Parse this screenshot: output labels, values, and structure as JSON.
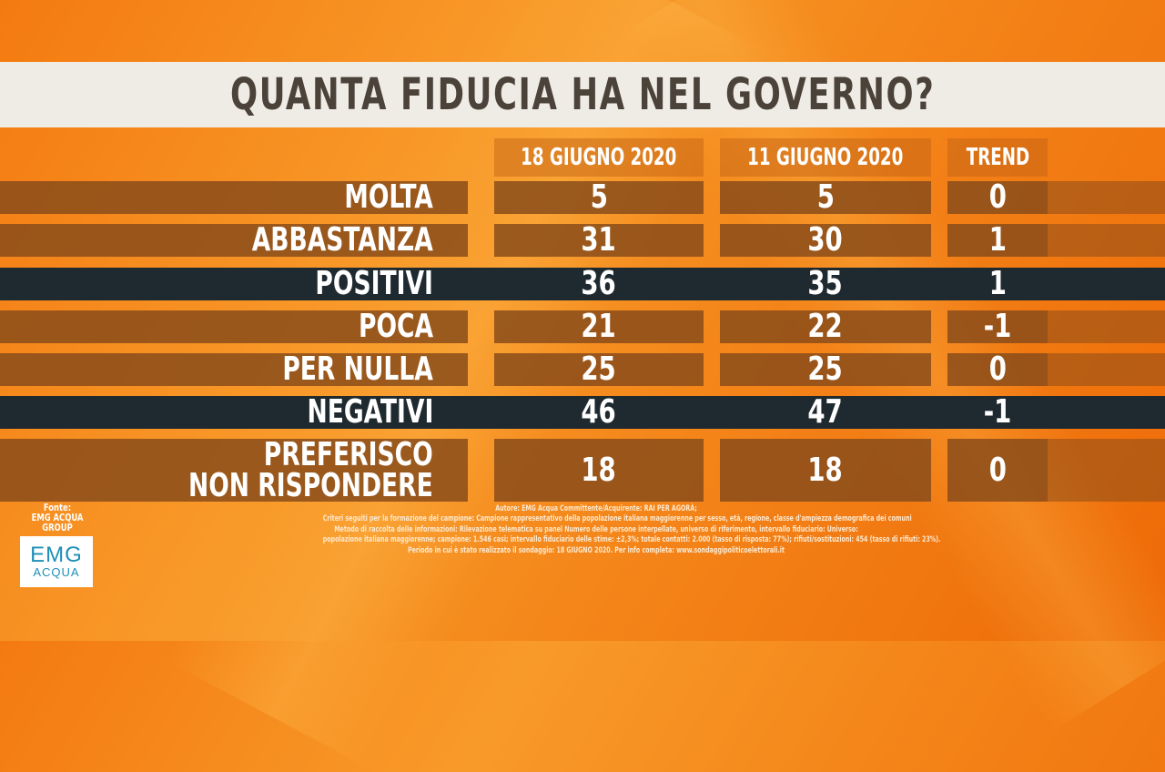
{
  "title": "QUANTA FIDUCIA HA NEL GOVERNO?",
  "colors": {
    "normal_row": "#8a4c1a",
    "highlight_row": "#1f2a30",
    "title_bar": "#efece6",
    "title_text": "#4b423a"
  },
  "chart_data": {
    "type": "table",
    "title": "QUANTA FIDUCIA HA NEL GOVERNO?",
    "columns": [
      "18 GIUGNO 2020",
      "11 GIUGNO 2020",
      "TREND"
    ],
    "rows": [
      {
        "label": [
          "MOLTA"
        ],
        "values": [
          "5",
          "5",
          "0"
        ],
        "highlight": false
      },
      {
        "label": [
          "ABBASTANZA"
        ],
        "values": [
          "31",
          "30",
          "1"
        ],
        "highlight": false
      },
      {
        "label": [
          "POSITIVI"
        ],
        "values": [
          "36",
          "35",
          "1"
        ],
        "highlight": true
      },
      {
        "label": [
          "POCA"
        ],
        "values": [
          "21",
          "22",
          "-1"
        ],
        "highlight": false
      },
      {
        "label": [
          "PER NULLA"
        ],
        "values": [
          "25",
          "25",
          "0"
        ],
        "highlight": false
      },
      {
        "label": [
          "NEGATIVI"
        ],
        "values": [
          "46",
          "47",
          "-1"
        ],
        "highlight": true
      },
      {
        "label": [
          "PREFERISCO",
          "NON RISPONDERE"
        ],
        "values": [
          "18",
          "18",
          "0"
        ],
        "highlight": false
      }
    ]
  },
  "source": {
    "fonte_label": "Fonte:",
    "group": "EMG ACQUA GROUP",
    "logo_main": "EMG",
    "logo_sub": "ACQUA"
  },
  "notes": [
    "Autore: EMG Acqua Committente/Acquirente: RAI PER AGORÀ;",
    "Criteri seguiti per la formazione del campione: Campione rappresentativo della popolazione italiana maggiorenne per sesso, età, regione, classe d'ampiezza demografica dei comuni",
    "Metodo di raccolta delle informazioni: Rilevazione telematica su panel Numero delle persone interpellate, universo di riferimento, intervallo fiduciario: Universo:",
    "popolazione italiana maggiorenne; campione: 1.546 casi; intervallo fiduciario delle stime: ±2,3%; totale contatti: 2.000 (tasso di risposta: 77%); rifiuti/sostituzioni: 454 (tasso di rifiuti: 23%).",
    "Periodo in cui è stato realizzato il sondaggio: 18 GIUGNO 2020. Per info completa: www.sondaggipoliticoelettorali.it"
  ]
}
